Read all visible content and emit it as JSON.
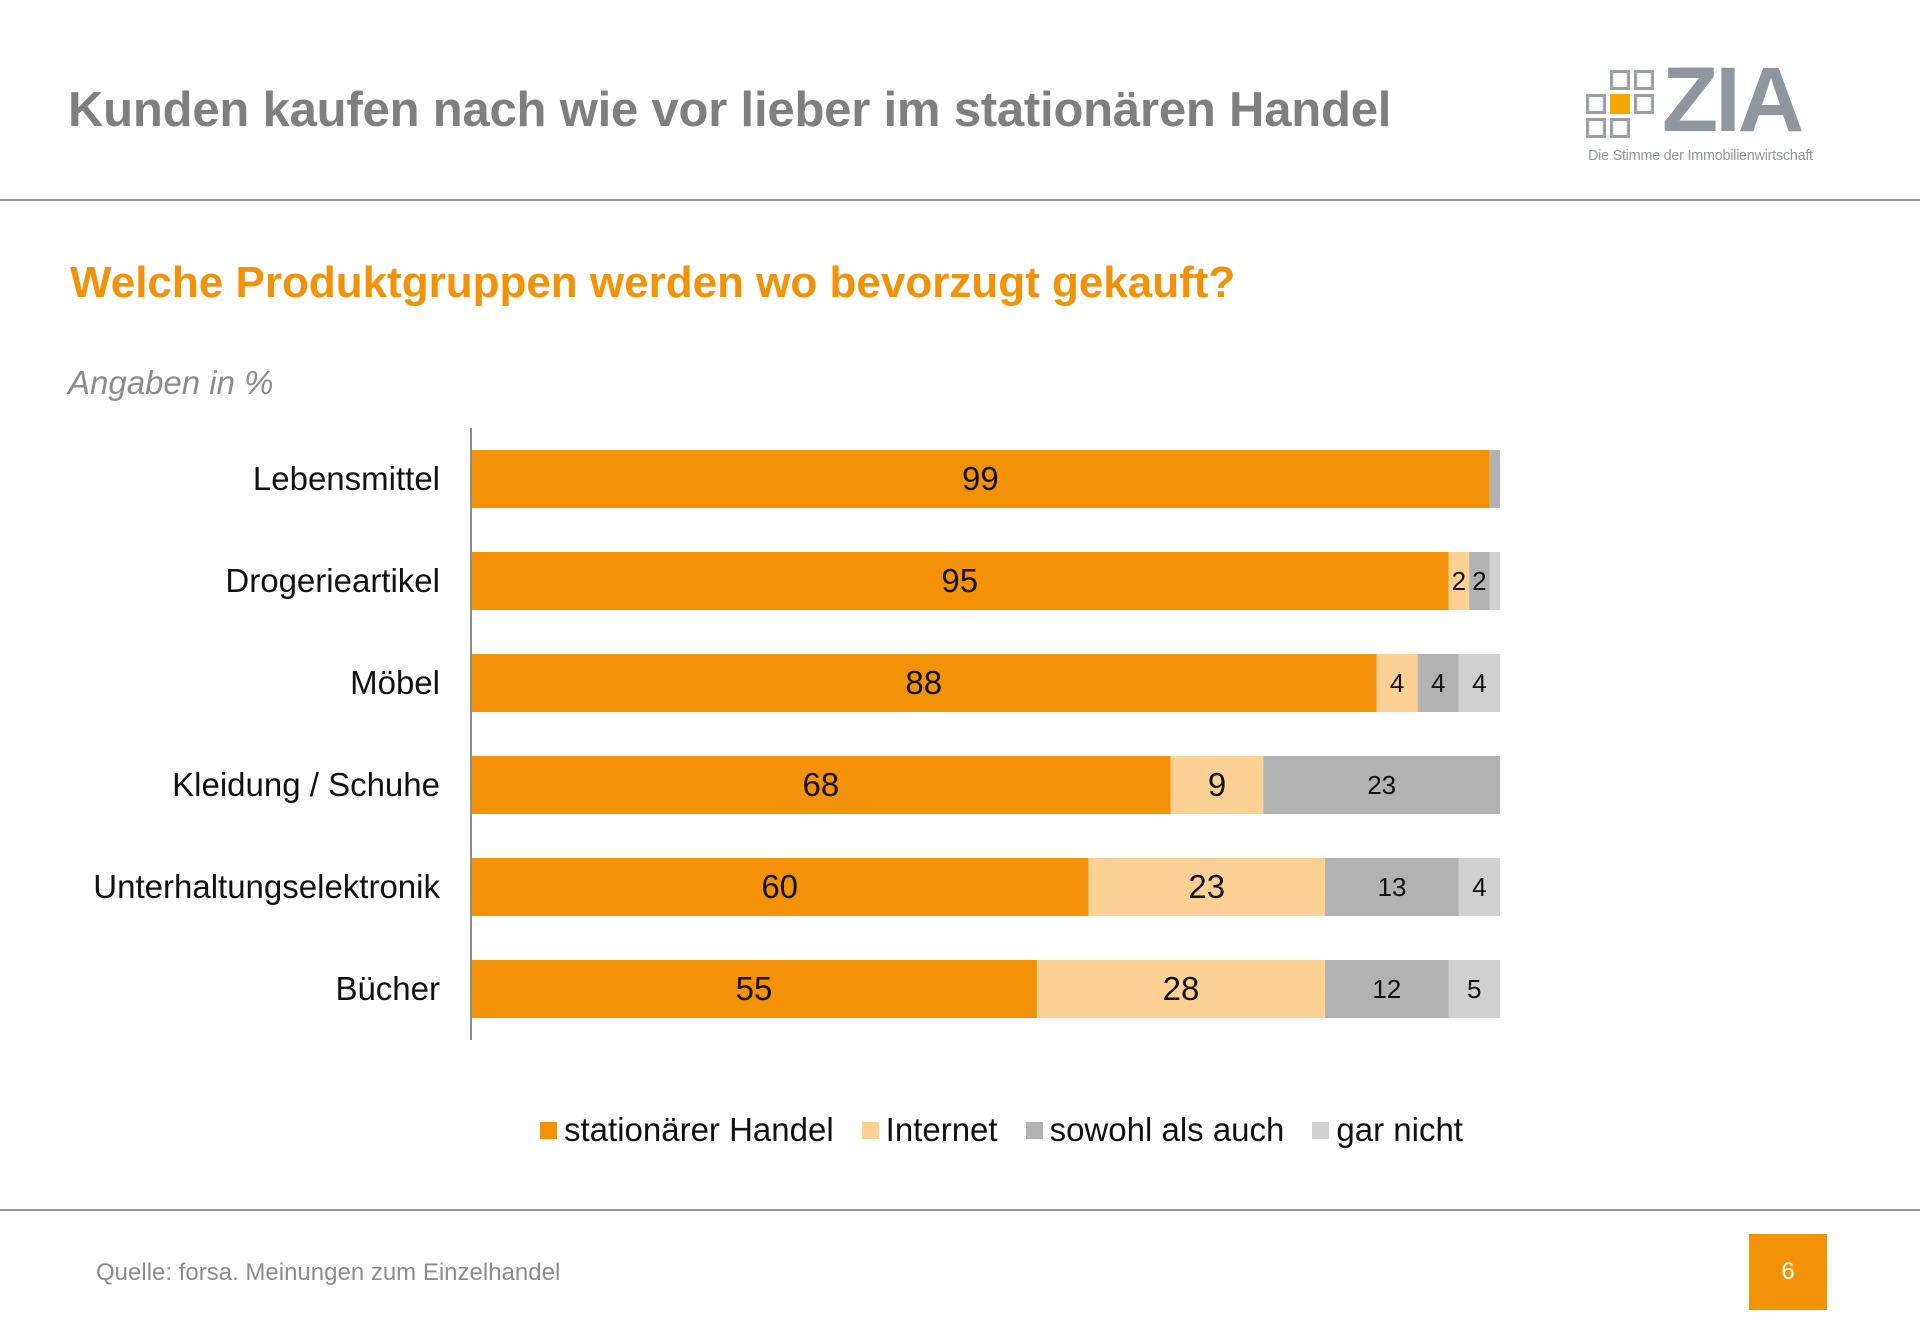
{
  "header": {
    "title": "Kunden kaufen nach wie vor lieber im stationären Handel",
    "logo": {
      "wordmark": "ZIA",
      "tagline": "Die Stimme der Immobilienwirtschaft",
      "icon": "grid-squares-logo-icon"
    }
  },
  "subtitle": "Welche Produktgruppen werden wo bevorzugt gekauft?",
  "unit_note": "Angaben in %",
  "colors": {
    "accent": "#f39207",
    "title_gray": "#7f7f7f"
  },
  "chart_data": {
    "type": "bar",
    "orientation": "horizontal",
    "stacked": true,
    "title": "Welche Produktgruppen werden wo bevorzugt gekauft?",
    "xlabel": "",
    "ylabel": "",
    "unit": "%",
    "xlim": [
      0,
      100
    ],
    "grid": false,
    "legend_position": "bottom-center",
    "categories": [
      "Lebensmittel",
      "Drogerieartikel",
      "Möbel",
      "Kleidung / Schuhe",
      "Unterhaltungselektronik",
      "Bücher"
    ],
    "series": [
      {
        "name": "stationärer Handel",
        "color": "#f39207",
        "values": [
          99,
          95,
          88,
          68,
          60,
          55
        ],
        "labels": [
          "99",
          "95",
          "88",
          "68",
          "60",
          "55"
        ]
      },
      {
        "name": "Internet",
        "color": "#fdd193",
        "values": [
          0,
          2,
          4,
          9,
          23,
          28
        ],
        "labels": [
          "",
          "2",
          "4",
          "9",
          "23",
          "28"
        ]
      },
      {
        "name": "sowohl als auch",
        "color": "#b2b2b2",
        "values": [
          1,
          2,
          4,
          23,
          13,
          12
        ],
        "labels": [
          "",
          "2",
          "4",
          "23",
          "13",
          "12"
        ]
      },
      {
        "name": "gar nicht",
        "color": "#d0d0d0",
        "values": [
          0,
          1,
          4,
          0,
          4,
          5
        ],
        "labels": [
          "",
          "",
          "4",
          "",
          "4",
          "5"
        ]
      }
    ]
  },
  "footer": {
    "source": "Quelle: forsa. Meinungen zum Einzelhandel",
    "page_number": "6"
  }
}
